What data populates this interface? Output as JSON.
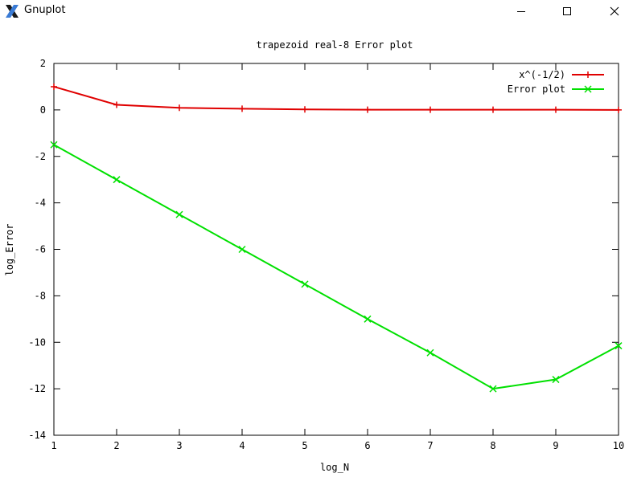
{
  "window": {
    "title": "Gnuplot",
    "controls": [
      "minimize",
      "maximize",
      "close"
    ]
  },
  "chart_data": {
    "type": "line",
    "title": "trapezoid real-8 Error plot",
    "xlabel": "log_N",
    "ylabel": "log_Error",
    "xlim": [
      1,
      10
    ],
    "ylim": [
      -14,
      2
    ],
    "xticks": [
      1,
      2,
      3,
      4,
      5,
      6,
      7,
      8,
      9,
      10
    ],
    "yticks": [
      2,
      0,
      -2,
      -4,
      -6,
      -8,
      -10,
      -12,
      -14
    ],
    "grid": false,
    "legend_position": "top-right",
    "series": [
      {
        "name": "x^(-1/2)",
        "color": "#e00000",
        "marker": "plus",
        "x": [
          1,
          2,
          3,
          4,
          5,
          6,
          7,
          8,
          9,
          10
        ],
        "y": [
          1.0,
          0.22,
          0.09,
          0.05,
          0.02,
          0.01,
          0.01,
          0.01,
          0.01,
          0.0
        ]
      },
      {
        "name": "Error plot",
        "color": "#00e000",
        "marker": "cross",
        "x": [
          1,
          2,
          3,
          4,
          5,
          6,
          7,
          8,
          9,
          10
        ],
        "y": [
          -1.5,
          -3.0,
          -4.5,
          -6.0,
          -7.5,
          -9.0,
          -10.45,
          -12.0,
          -11.6,
          -10.15
        ]
      }
    ]
  }
}
